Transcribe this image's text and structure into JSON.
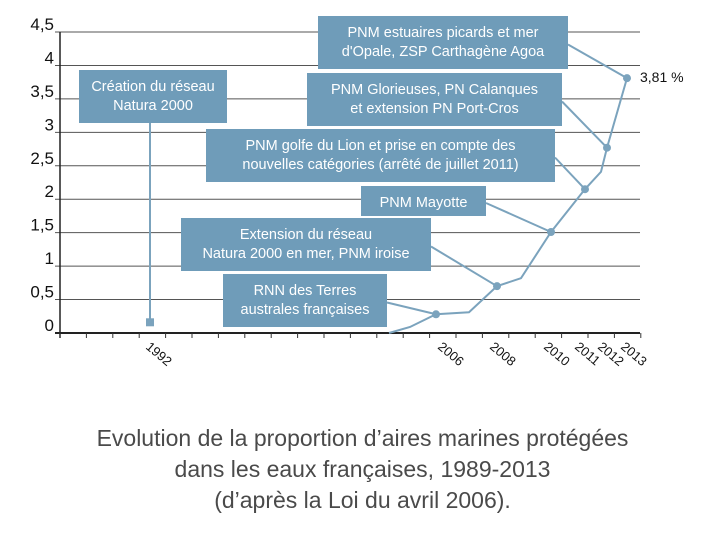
{
  "chart_data": {
    "type": "line",
    "title": "",
    "xlabel": "",
    "ylabel": "",
    "ylim": [
      0,
      4.5
    ],
    "y_ticks": [
      "0",
      "0,5",
      "1",
      "1,5",
      "2",
      "2,5",
      "3",
      "3,5",
      "4",
      "4,5"
    ],
    "x_tick_labels": [
      "1992",
      "2006",
      "2008",
      "2010",
      "2011",
      "2012",
      "2013"
    ],
    "grid": true,
    "line_color": "#7ba3bd",
    "box_color": "#6f9cb9",
    "series": [
      {
        "points": [
          {
            "year": null,
            "value": 0
          },
          {
            "year": null,
            "value": 0.09
          },
          {
            "year": 2006,
            "value": 0.28,
            "marker": true
          },
          {
            "year": null,
            "value": 0.31
          },
          {
            "year": 2008,
            "value": 0.7,
            "marker": true
          },
          {
            "year": null,
            "value": 0.82
          },
          {
            "year": 2010,
            "value": 1.51,
            "marker": true
          },
          {
            "year": 2011,
            "value": 2.15,
            "marker": true
          },
          {
            "year": null,
            "value": 2.41
          },
          {
            "year": 2012,
            "value": 2.77,
            "marker": true
          },
          {
            "year": 2013,
            "value": 3.81,
            "marker": true
          }
        ]
      }
    ],
    "marker_1992": {
      "year": 1992,
      "value": 0.16
    },
    "end_label": "3,81 %",
    "annotations": [
      {
        "lines": [
          "Création du réseau",
          "Natura 2000"
        ],
        "year": 1992
      },
      {
        "lines": [
          "PNM estuaires picards et mer",
          "d'Opale, ZSP Carthagène Agoa"
        ],
        "year": 2013
      },
      {
        "lines": [
          "PNM Glorieuses, PN Calanques",
          "et extension PN Port-Cros"
        ],
        "year": 2012
      },
      {
        "lines": [
          "PNM golfe du Lion et prise en compte des",
          "nouvelles catégories (arrêté de juillet 2011)"
        ],
        "year": 2011
      },
      {
        "lines": [
          "PNM Mayotte"
        ],
        "year": 2010
      },
      {
        "lines": [
          "Extension du réseau",
          "Natura 2000 en mer, PNM iroise"
        ],
        "year": 2008
      },
      {
        "lines": [
          "RNN des Terres",
          "australes françaises"
        ],
        "year": 2006
      }
    ]
  },
  "caption": {
    "line1": "Evolution de la proportion d’aires marines protégées",
    "line2": "dans les eaux françaises, 1989-2013",
    "line3": "(d’après la Loi du avril 2006)."
  }
}
